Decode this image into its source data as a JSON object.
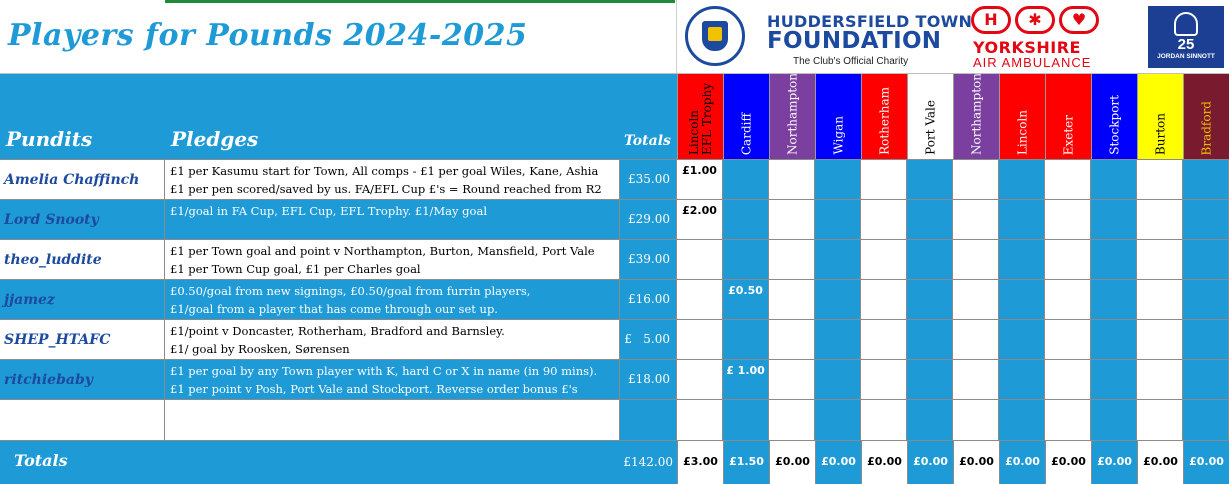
{
  "title": "Players for Pounds 2024-2025",
  "logos": {
    "htf_line1": "HUDDERSFIELD TOWN",
    "htf_line2": "FOUNDATION",
    "htf_line3": "The Club's Official Charity",
    "yaa_line1": "YORKSHIRE",
    "yaa_line2": "AIR AMBULANCE",
    "js_number": "25",
    "js_name": "JORDAN SINNOTT"
  },
  "headers": {
    "pundits": "Pundits",
    "pledges": "Pledges",
    "totals": "Totals"
  },
  "matches": [
    {
      "label": "Lincoln\nEFL Trophy",
      "bg": "#ff0000",
      "fg": "#000000"
    },
    {
      "label": "Cardiff",
      "bg": "#0000ff",
      "fg": "#ffffff"
    },
    {
      "label": "Northampton",
      "bg": "#7b3fa0",
      "fg": "#ffffff"
    },
    {
      "label": "Wigan",
      "bg": "#0000ff",
      "fg": "#ffffff"
    },
    {
      "label": "Rotherham",
      "bg": "#ff0000",
      "fg": "#ffffff"
    },
    {
      "label": "Port Vale",
      "bg": "#ffffff",
      "fg": "#000000"
    },
    {
      "label": "Northampton",
      "bg": "#7b3fa0",
      "fg": "#ffffff"
    },
    {
      "label": "Lincoln",
      "bg": "#ff0000",
      "fg": "#ffffff"
    },
    {
      "label": "Exeter",
      "bg": "#ff0000",
      "fg": "#ffffff"
    },
    {
      "label": "Stockport",
      "bg": "#0000ff",
      "fg": "#ffffff"
    },
    {
      "label": "Burton",
      "bg": "#ffff00",
      "fg": "#000000"
    },
    {
      "label": "Bradford",
      "bg": "#7a1a2e",
      "fg": "#f2c200"
    }
  ],
  "rows": [
    {
      "pundit": "Amelia Chaffinch",
      "pledge_line1": "£1 per Kasumu start for Town, All comps - £1 per goal Wiles, Kane, Ashia",
      "pledge_line2": "£1 per pen scored/saved by us. FA/EFL Cup £'s = Round reached from R2 on",
      "total": "£35.00",
      "cells": [
        "£1.00",
        "",
        "",
        "",
        "",
        "",
        "",
        "",
        "",
        "",
        "",
        ""
      ]
    },
    {
      "pundit": "Lord Snooty",
      "pledge_line1": "£1/goal in FA Cup, EFL Cup, EFL Trophy. £1/May goal",
      "pledge_line2": "",
      "total": "£29.00",
      "cells": [
        "£2.00",
        "",
        "",
        "",
        "",
        "",
        "",
        "",
        "",
        "",
        "",
        ""
      ]
    },
    {
      "pundit": "theo_luddite",
      "pledge_line1": "£1 per Town goal and point v Northampton, Burton, Mansfield, Port Vale",
      "pledge_line2": "£1 per Town Cup goal, £1 per Charles goal",
      "total": "£39.00",
      "cells": [
        "",
        "",
        "",
        "",
        "",
        "",
        "",
        "",
        "",
        "",
        "",
        ""
      ]
    },
    {
      "pundit": "jjamez",
      "pledge_line1": "£0.50/goal from new signings, £0.50/goal from furrin players,",
      "pledge_line2": "£1/goal from a player that has come through our set up.",
      "total": "£16.00",
      "cells": [
        "",
        "£0.50",
        "",
        "",
        "",
        "",
        "",
        "",
        "",
        "",
        "",
        ""
      ]
    },
    {
      "pundit": "SHEP_HTAFC",
      "pledge_line1": "£1/point v Doncaster, Rotherham, Bradford and Barnsley.",
      "pledge_line2": "£1/ goal by Roosken, Sørensen",
      "total": "£   5.00",
      "cells": [
        "",
        "",
        "",
        "",
        "",
        "",
        "",
        "",
        "",
        "",
        "",
        ""
      ]
    },
    {
      "pundit": "ritchiebaby",
      "pledge_line1": "£1 per goal by any Town player with K, hard C or X in name (in 90 mins).",
      "pledge_line2": "£1 per point v Posh, Port Vale and Stockport. Reverse order bonus £'s",
      "total": "£18.00",
      "cells": [
        "",
        "£ 1.00",
        "",
        "",
        "",
        "",
        "",
        "",
        "",
        "",
        "",
        ""
      ]
    },
    {
      "pundit": "",
      "pledge_line1": "",
      "pledge_line2": "",
      "total": "",
      "cells": [
        "",
        "",
        "",
        "",
        "",
        "",
        "",
        "",
        "",
        "",
        "",
        ""
      ]
    }
  ],
  "totals_row": {
    "label": "Totals",
    "grand_total": "£142.00",
    "values": [
      "£3.00",
      "£1.50",
      "£0.00",
      "£0.00",
      "£0.00",
      "£0.00",
      "£0.00",
      "£0.00",
      "£0.00",
      "£0.00",
      "£0.00",
      "£0.00"
    ]
  },
  "colors": {
    "accent": "#1e9ad6",
    "title": "#1e9ad6",
    "pundit_text": "#1c4a9e"
  }
}
